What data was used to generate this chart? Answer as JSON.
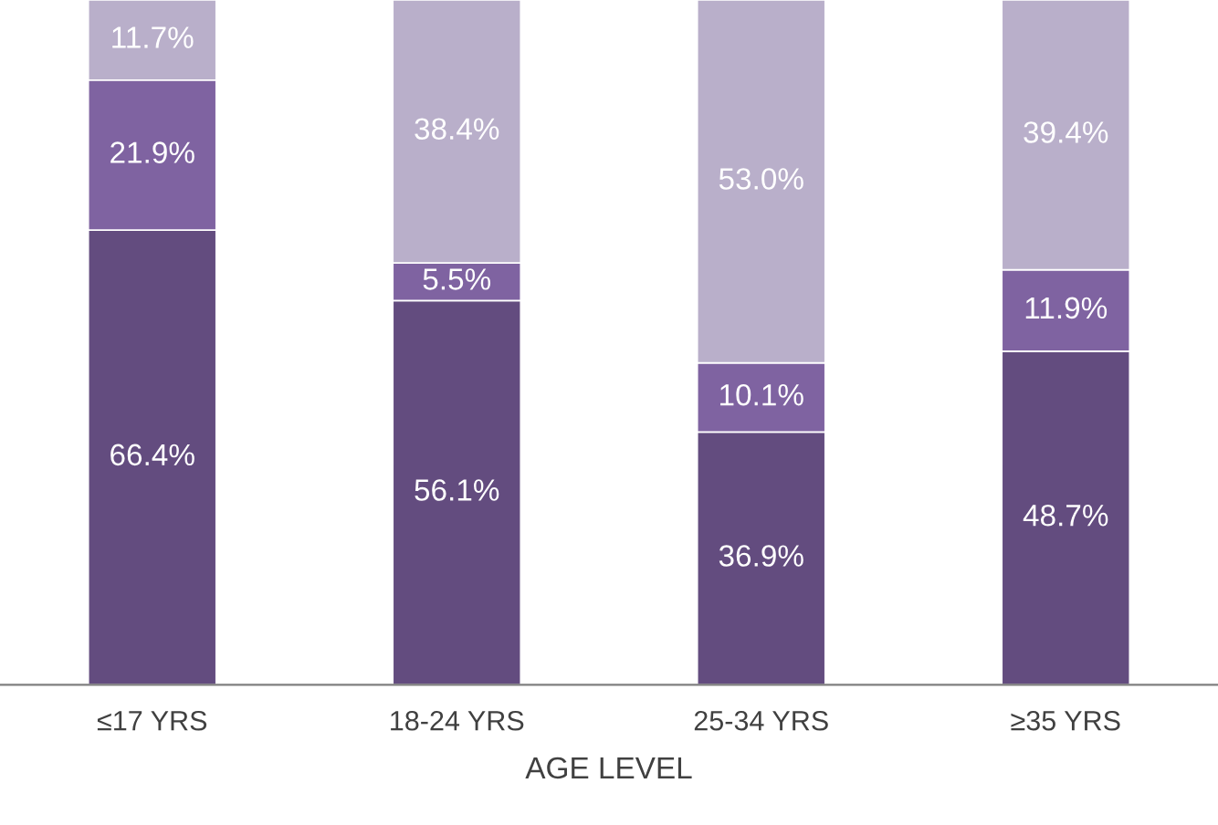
{
  "chart_data": {
    "type": "bar",
    "stacked": true,
    "xlabel": "AGE LEVEL",
    "categories": [
      "≤17 YRS",
      "18-24 YRS",
      "25-34 YRS",
      "≥35 YRS"
    ],
    "ylim": [
      0,
      100
    ],
    "tick_labels": "x",
    "series": [
      {
        "color": "#634c7f",
        "values": [
          66.4,
          56.1,
          36.9,
          48.7
        ],
        "value_labels": [
          "66.4%",
          "56.1%",
          "36.9%",
          "48.7%"
        ]
      },
      {
        "color": "#7f63a1",
        "values": [
          21.9,
          5.5,
          10.1,
          11.9
        ],
        "value_labels": [
          "21.9%",
          "5.5%",
          "10.1%",
          "11.9%"
        ]
      },
      {
        "color": "#b9afca",
        "values": [
          11.7,
          38.4,
          53.0,
          39.4
        ],
        "value_labels": [
          "11.7%",
          "38.4%",
          "53.0%",
          "39.4%"
        ]
      }
    ]
  }
}
